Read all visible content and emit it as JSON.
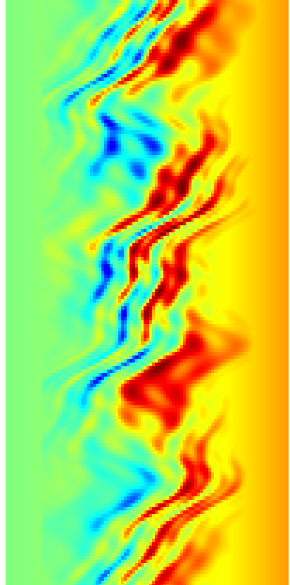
{
  "image": {
    "kind": "simulation-heatmap",
    "colormap": [
      "#0000ff",
      "#00ffff",
      "#80ff80",
      "#ffff00",
      "#ff0000",
      "#800000"
    ],
    "background": "#ffffff",
    "left_color": "#80ea6c",
    "right_color": "#e8ff1a"
  }
}
